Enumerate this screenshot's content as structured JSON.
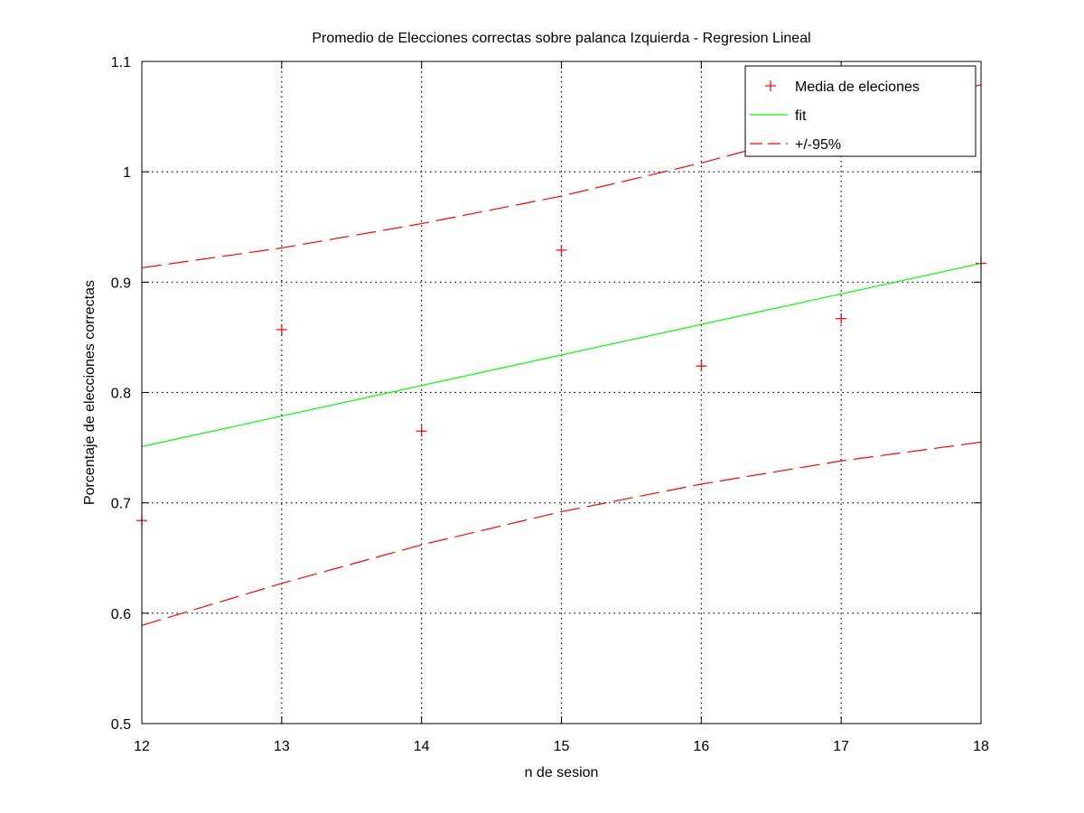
{
  "chart_data": {
    "type": "scatter",
    "title": "Promedio de Elecciones correctas sobre palanca Izquierda - Regresion Lineal",
    "xlabel": "n de sesion",
    "ylabel": "Porcentaje de elecciones correctas",
    "xlim": [
      12,
      18
    ],
    "ylim": [
      0.5,
      1.1
    ],
    "xticks": [
      "12",
      "13",
      "14",
      "15",
      "16",
      "17",
      "18"
    ],
    "yticks": [
      "0.5",
      "0.6",
      "0.7",
      "0.8",
      "0.9",
      "1",
      "1.1"
    ],
    "grid": true,
    "legend_position": "top-right",
    "series": [
      {
        "name": "Media de eleciones",
        "kind": "markers",
        "marker": "+",
        "color": "#ff0000",
        "x": [
          12,
          13,
          14,
          15,
          16,
          17,
          18
        ],
        "y": [
          0.684,
          0.857,
          0.765,
          0.929,
          0.824,
          0.867,
          0.917
        ]
      },
      {
        "name": "fit",
        "kind": "line",
        "color": "#00ff00",
        "x": [
          12,
          18
        ],
        "y": [
          0.751,
          0.917
        ]
      },
      {
        "name": "+/-95%",
        "kind": "dashed",
        "color": "#ff0000",
        "x": [
          12,
          13,
          14,
          15,
          16,
          17,
          18
        ],
        "y": [
          0.913,
          0.931,
          0.953,
          0.978,
          1.008,
          1.042,
          1.079
        ]
      },
      {
        "name": "",
        "kind": "dashed",
        "color": "#ff0000",
        "x": [
          12,
          13,
          14,
          15,
          16,
          17,
          18
        ],
        "y": [
          0.589,
          0.627,
          0.662,
          0.692,
          0.717,
          0.738,
          0.755
        ]
      }
    ]
  }
}
